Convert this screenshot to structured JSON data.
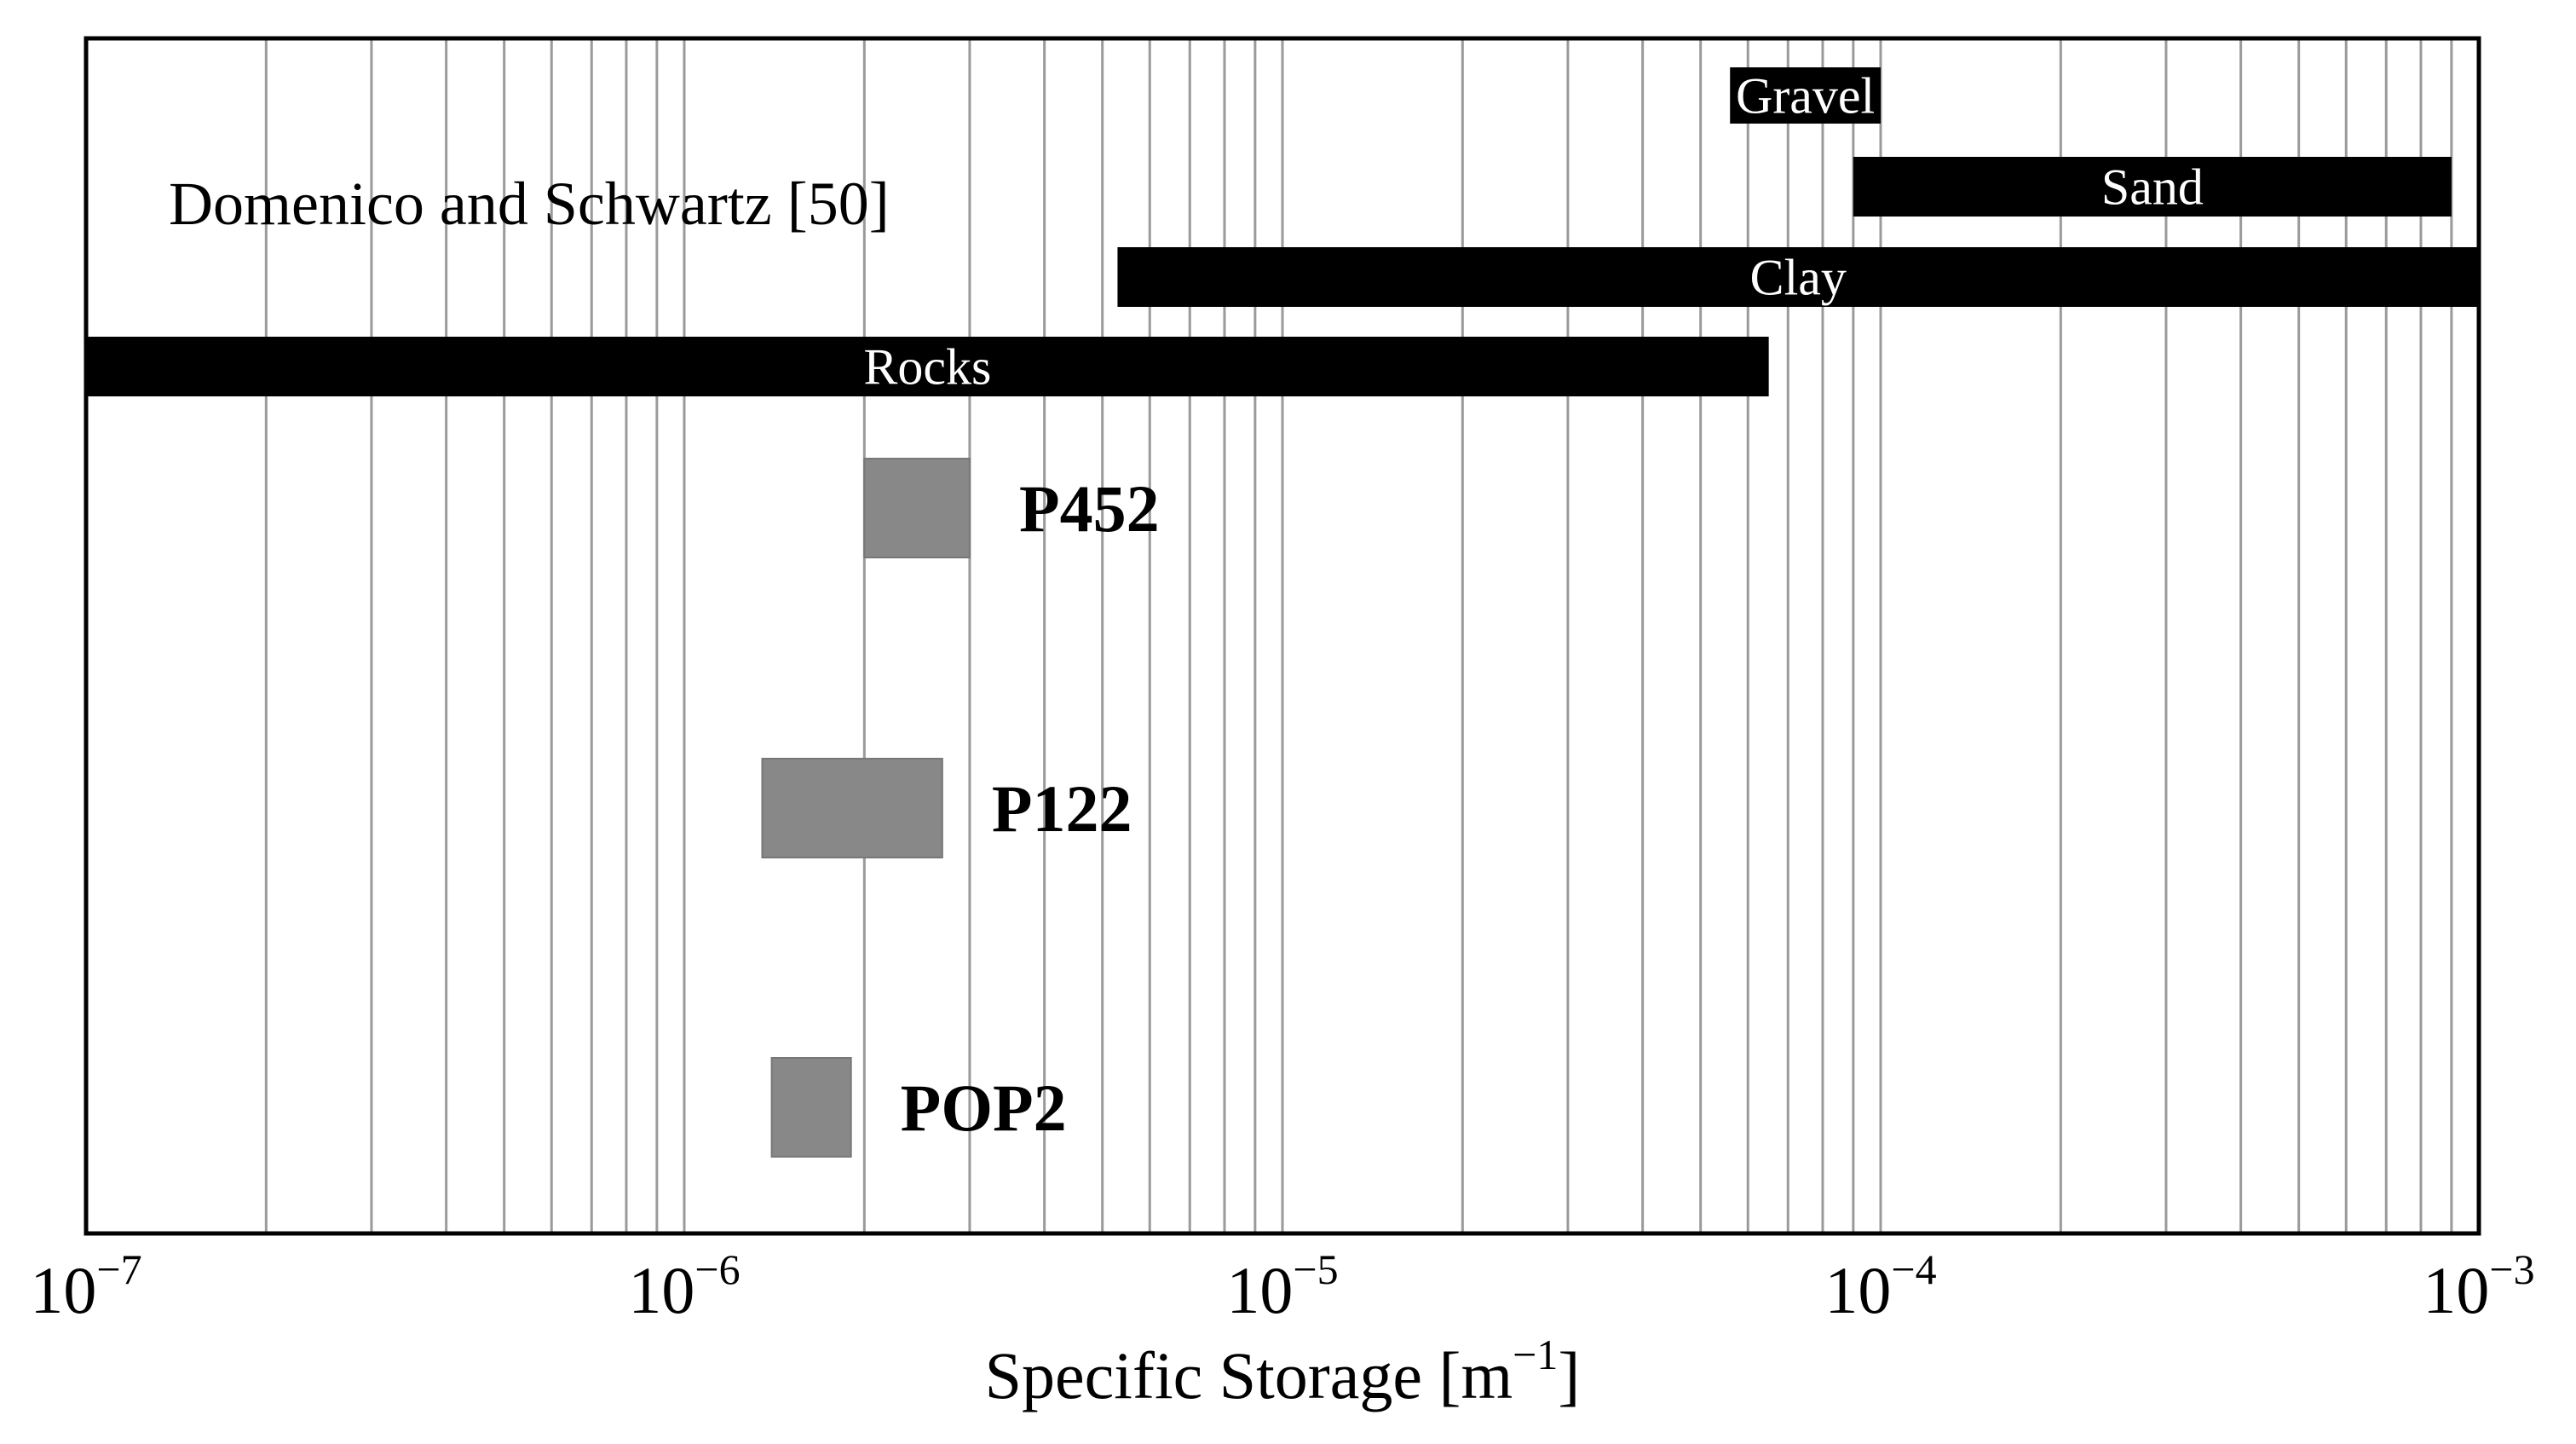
{
  "chart_data": {
    "type": "bar",
    "orientation": "horizontal-range",
    "x_scale": "log",
    "xlim": [
      1e-07,
      0.001
    ],
    "xlabel_main": "Specific Storage [m",
    "xlabel_sup": "−1",
    "xlabel_close": "]",
    "grid": "vertical minor and major lines",
    "ticks": [
      {
        "value": 1e-07,
        "base": "10",
        "exp": "−7"
      },
      {
        "value": 1e-06,
        "base": "10",
        "exp": "−6"
      },
      {
        "value": 1e-05,
        "base": "10",
        "exp": "−5"
      },
      {
        "value": 0.0001,
        "base": "10",
        "exp": "−4"
      },
      {
        "value": 0.001,
        "base": "10",
        "exp": "−3"
      }
    ],
    "reference_label": "Domenico and Schwartz [50]",
    "reference_ranges": [
      {
        "name": "Gravel",
        "min": 5.6e-05,
        "max": 0.0001
      },
      {
        "name": "Sand",
        "min": 9e-05,
        "max": 0.0009
      },
      {
        "name": "Clay",
        "min": 5.3e-06,
        "max": 0.001
      },
      {
        "name": "Rocks",
        "min": 1e-07,
        "max": 6.5e-05
      }
    ],
    "measured_ranges": [
      {
        "name": "P452",
        "min": 2e-06,
        "max": 3e-06
      },
      {
        "name": "P122",
        "min": 1.35e-06,
        "max": 2.7e-06
      },
      {
        "name": "POP2",
        "min": 1.4e-06,
        "max": 1.9e-06
      }
    ],
    "colors": {
      "reference_bar": "#000000",
      "reference_text": "#ffffff",
      "measured_bar": "#888888",
      "grid": "#9a9a9a",
      "frame": "#000000"
    }
  }
}
